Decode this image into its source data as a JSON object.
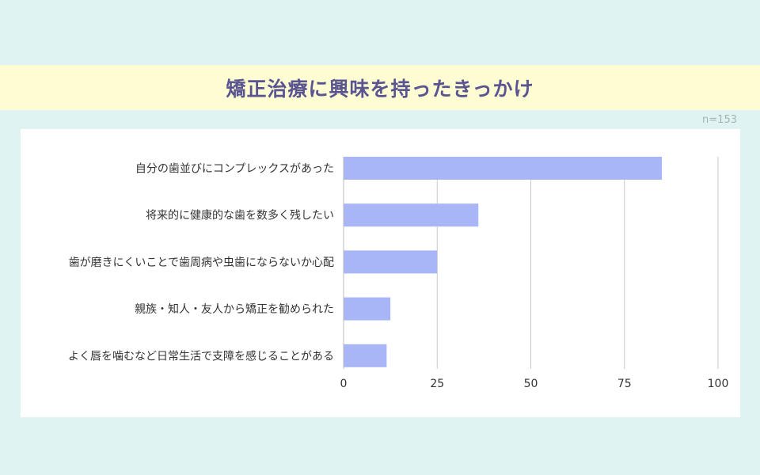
{
  "title": "矯正治療に興味を持ったきっかけ",
  "sample_note": "n=153",
  "colors": {
    "bar": "#a8b5f7",
    "grid": "#c9c9c9",
    "title": "#5a5590",
    "band": "#fdfcd2",
    "background": "#dff3f2"
  },
  "chart_data": {
    "type": "bar",
    "orientation": "horizontal",
    "categories": [
      "自分の歯並びにコンプレックスがあった",
      "将来的に健康的な歯を数多く残したい",
      "歯が磨きにくいことで歯周病や虫歯にならないか心配",
      "親族・知人・友人から矯正を勧められた",
      "よく唇を噛むなど日常生活で支障を感じることがある"
    ],
    "values": [
      85,
      36,
      25,
      12.5,
      11.5
    ],
    "xlim": [
      0,
      100
    ],
    "xticks": [
      "0",
      "25",
      "50",
      "75",
      "100"
    ],
    "grid": true
  }
}
